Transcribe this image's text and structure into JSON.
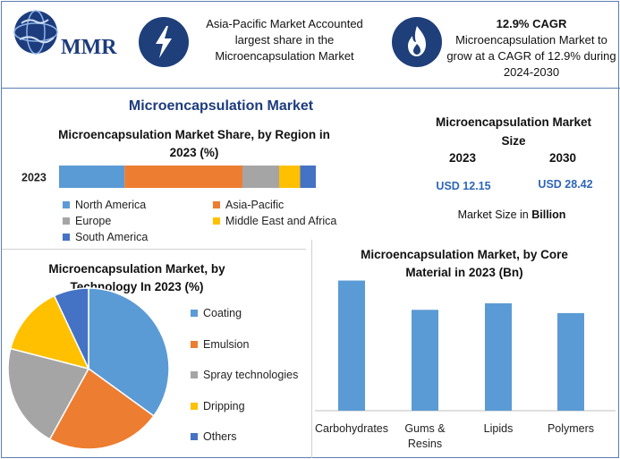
{
  "brand": {
    "logo_text": "MMR"
  },
  "header": {
    "left_text": "Asia-Pacific Market Accounted largest share in the Microencapsulation Market",
    "right_title": "12.9% CAGR",
    "right_text": "Microencapsulation Market to grow at a CAGR of 12.9% during 2024-2030"
  },
  "main_title": "Microencapsulation Market",
  "market_size": {
    "title": "Microencapsulation Market Size",
    "year_a": "2023",
    "value_a": "USD 12.15",
    "year_b": "2030",
    "value_b": "USD 28.42",
    "note_prefix": "Market Size in ",
    "note_unit": "Billion"
  },
  "colors": {
    "north_america": "#5b9bd5",
    "asia_pacific": "#ed7d31",
    "europe": "#a5a5a5",
    "mea": "#ffc000",
    "south_america": "#4472c4",
    "accent": "#1f3f7a"
  },
  "chart_data": [
    {
      "type": "bar",
      "orientation": "horizontal-stacked",
      "title": "Microencapsulation Market Share, by Region in 2023 (%)",
      "categories": [
        "2023"
      ],
      "series": [
        {
          "name": "North America",
          "values": [
            25
          ]
        },
        {
          "name": "Asia-Pacific",
          "values": [
            45
          ]
        },
        {
          "name": "Europe",
          "values": [
            14
          ]
        },
        {
          "name": "Middle East and Africa",
          "values": [
            8
          ]
        },
        {
          "name": "South America",
          "values": [
            6
          ]
        }
      ],
      "legend": "bottom"
    },
    {
      "type": "pie",
      "title": "Microencapsulation Market, by Technology In 2023 (%)",
      "labels": [
        "Coating",
        "Emulsion",
        "Spray technologies",
        "Dripping",
        "Others"
      ],
      "values": [
        35,
        23,
        21,
        14,
        7
      ],
      "legend": "right"
    },
    {
      "type": "bar",
      "title": "Microencapsulation Market, by Core Material in 2023 (Bn)",
      "categories": [
        "Carbohydrates",
        "Gums & Resins",
        "Lipids",
        "Polymers"
      ],
      "values": [
        4.0,
        3.1,
        3.3,
        3.0
      ],
      "ylim": [
        0,
        4.4
      ]
    }
  ]
}
